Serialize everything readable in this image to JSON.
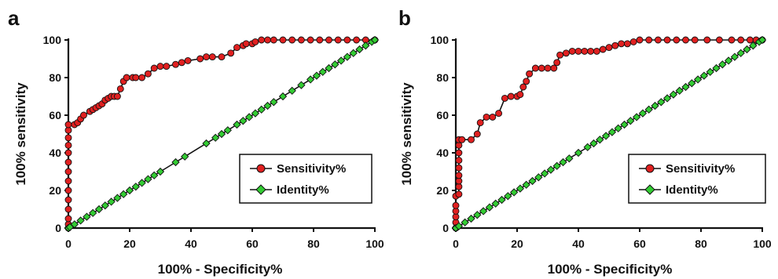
{
  "colors": {
    "sensitivity": "#e02020",
    "identity": "#33cc33",
    "axis": "#111111"
  },
  "chart_data": [
    {
      "panel_label": "a",
      "type": "line",
      "xlabel": "100% - Specificity%",
      "ylabel": "100% sensitivity",
      "xlim": [
        0,
        100
      ],
      "ylim": [
        0,
        100
      ],
      "x_ticks": [
        "0",
        "20",
        "40",
        "60",
        "80",
        "100"
      ],
      "y_ticks": [
        "0",
        "20",
        "40",
        "60",
        "80",
        "100"
      ],
      "legend": [
        "Sensitivity%",
        "Identity%"
      ],
      "legend_position": "bottom-right",
      "grid": false,
      "series": [
        {
          "name": "Sensitivity%",
          "marker": "circle",
          "points": [
            [
              0,
              0
            ],
            [
              0,
              2
            ],
            [
              0,
              5
            ],
            [
              0,
              10
            ],
            [
              0,
              15
            ],
            [
              0,
              20
            ],
            [
              0,
              25
            ],
            [
              0,
              30
            ],
            [
              0,
              35
            ],
            [
              0,
              40
            ],
            [
              0,
              44
            ],
            [
              0,
              48
            ],
            [
              0,
              52
            ],
            [
              0,
              55
            ],
            [
              2,
              55
            ],
            [
              3,
              56
            ],
            [
              4,
              58
            ],
            [
              5,
              60
            ],
            [
              7,
              62
            ],
            [
              8,
              63
            ],
            [
              9,
              64
            ],
            [
              10,
              65
            ],
            [
              11,
              66
            ],
            [
              12,
              68
            ],
            [
              13,
              69
            ],
            [
              14,
              70
            ],
            [
              15,
              70
            ],
            [
              16,
              70
            ],
            [
              17,
              74
            ],
            [
              18,
              78
            ],
            [
              19,
              80
            ],
            [
              21,
              80
            ],
            [
              22,
              80
            ],
            [
              24,
              80
            ],
            [
              26,
              82
            ],
            [
              28,
              85
            ],
            [
              30,
              86
            ],
            [
              32,
              86
            ],
            [
              35,
              87
            ],
            [
              37,
              88
            ],
            [
              39,
              89
            ],
            [
              43,
              90
            ],
            [
              45,
              91
            ],
            [
              47,
              91
            ],
            [
              50,
              91
            ],
            [
              53,
              93
            ],
            [
              55,
              96
            ],
            [
              57,
              97
            ],
            [
              58,
              98
            ],
            [
              60,
              98
            ],
            [
              61,
              99
            ],
            [
              63,
              100
            ],
            [
              65,
              100
            ],
            [
              67,
              100
            ],
            [
              70,
              100
            ],
            [
              73,
              100
            ],
            [
              76,
              100
            ],
            [
              79,
              100
            ],
            [
              82,
              100
            ],
            [
              85,
              100
            ],
            [
              88,
              100
            ],
            [
              91,
              100
            ],
            [
              94,
              100
            ],
            [
              97,
              100
            ],
            [
              100,
              100
            ]
          ]
        },
        {
          "name": "Identity%",
          "marker": "diamond",
          "points": [
            [
              0,
              0
            ],
            [
              0.5,
              0.5
            ],
            [
              2,
              2
            ],
            [
              4,
              4
            ],
            [
              6,
              6
            ],
            [
              8,
              8
            ],
            [
              10,
              10
            ],
            [
              12,
              12
            ],
            [
              14,
              14
            ],
            [
              16,
              16
            ],
            [
              18,
              18
            ],
            [
              20,
              20
            ],
            [
              22,
              22
            ],
            [
              24,
              24
            ],
            [
              26,
              26
            ],
            [
              28,
              28
            ],
            [
              30,
              30
            ],
            [
              35,
              35
            ],
            [
              38,
              38
            ],
            [
              45,
              45
            ],
            [
              48,
              48
            ],
            [
              50,
              50
            ],
            [
              52,
              52
            ],
            [
              55,
              55
            ],
            [
              57,
              57
            ],
            [
              59,
              59
            ],
            [
              61,
              61
            ],
            [
              63,
              63
            ],
            [
              65,
              65
            ],
            [
              67,
              67
            ],
            [
              70,
              70
            ],
            [
              73,
              73
            ],
            [
              76,
              76
            ],
            [
              79,
              79
            ],
            [
              81,
              81
            ],
            [
              83,
              83
            ],
            [
              85,
              85
            ],
            [
              87,
              87
            ],
            [
              89,
              89
            ],
            [
              91,
              91
            ],
            [
              93,
              93
            ],
            [
              95,
              95
            ],
            [
              97,
              97
            ],
            [
              99,
              99
            ],
            [
              100,
              100
            ]
          ]
        }
      ]
    },
    {
      "panel_label": "b",
      "type": "line",
      "xlabel": "100% - Specificity%",
      "ylabel": "100% sensitivity",
      "xlim": [
        0,
        100
      ],
      "ylim": [
        0,
        100
      ],
      "x_ticks": [
        "0",
        "20",
        "40",
        "60",
        "80",
        "100"
      ],
      "y_ticks": [
        "0",
        "20",
        "40",
        "60",
        "80",
        "100"
      ],
      "legend": [
        "Sensitivity%",
        "Identity%"
      ],
      "legend_position": "bottom-right",
      "grid": false,
      "series": [
        {
          "name": "Sensitivity%",
          "marker": "circle",
          "points": [
            [
              0,
              0
            ],
            [
              0,
              3
            ],
            [
              0,
              6
            ],
            [
              0,
              9
            ],
            [
              0,
              12
            ],
            [
              0,
              17
            ],
            [
              1,
              18
            ],
            [
              1,
              22
            ],
            [
              1,
              25
            ],
            [
              1,
              28
            ],
            [
              1,
              32
            ],
            [
              1,
              36
            ],
            [
              1,
              40
            ],
            [
              1,
              44
            ],
            [
              1,
              47
            ],
            [
              2,
              47
            ],
            [
              5,
              47
            ],
            [
              7,
              50
            ],
            [
              8,
              56
            ],
            [
              10,
              59
            ],
            [
              12,
              59
            ],
            [
              14,
              61
            ],
            [
              16,
              69
            ],
            [
              18,
              70
            ],
            [
              20,
              70
            ],
            [
              21,
              71
            ],
            [
              22,
              75
            ],
            [
              23,
              78
            ],
            [
              24,
              82
            ],
            [
              26,
              85
            ],
            [
              28,
              85
            ],
            [
              30,
              85
            ],
            [
              32,
              85
            ],
            [
              33,
              88
            ],
            [
              34,
              92
            ],
            [
              36,
              93
            ],
            [
              38,
              94
            ],
            [
              40,
              94
            ],
            [
              42,
              94
            ],
            [
              44,
              94
            ],
            [
              46,
              94
            ],
            [
              48,
              95
            ],
            [
              50,
              96
            ],
            [
              52,
              97
            ],
            [
              54,
              98
            ],
            [
              56,
              98
            ],
            [
              58,
              99
            ],
            [
              60,
              100
            ],
            [
              63,
              100
            ],
            [
              66,
              100
            ],
            [
              69,
              100
            ],
            [
              72,
              100
            ],
            [
              75,
              100
            ],
            [
              78,
              100
            ],
            [
              82,
              100
            ],
            [
              86,
              100
            ],
            [
              90,
              100
            ],
            [
              93,
              100
            ],
            [
              96,
              100
            ],
            [
              98,
              100
            ],
            [
              100,
              100
            ]
          ]
        },
        {
          "name": "Identity%",
          "marker": "diamond",
          "points": [
            [
              0,
              0
            ],
            [
              1,
              1
            ],
            [
              3,
              3
            ],
            [
              5,
              5
            ],
            [
              7,
              7
            ],
            [
              9,
              9
            ],
            [
              11,
              11
            ],
            [
              13,
              13
            ],
            [
              15,
              15
            ],
            [
              17,
              17
            ],
            [
              19,
              19
            ],
            [
              21,
              21
            ],
            [
              23,
              23
            ],
            [
              25,
              25
            ],
            [
              27,
              27
            ],
            [
              29,
              29
            ],
            [
              31,
              31
            ],
            [
              33,
              33
            ],
            [
              35,
              35
            ],
            [
              37,
              37
            ],
            [
              40,
              40
            ],
            [
              43,
              43
            ],
            [
              45,
              45
            ],
            [
              47,
              47
            ],
            [
              49,
              49
            ],
            [
              51,
              51
            ],
            [
              53,
              53
            ],
            [
              55,
              55
            ],
            [
              57,
              57
            ],
            [
              59,
              59
            ],
            [
              61,
              61
            ],
            [
              63,
              63
            ],
            [
              65,
              65
            ],
            [
              67,
              67
            ],
            [
              69,
              69
            ],
            [
              71,
              71
            ],
            [
              73,
              73
            ],
            [
              75,
              75
            ],
            [
              77,
              77
            ],
            [
              79,
              79
            ],
            [
              81,
              81
            ],
            [
              83,
              83
            ],
            [
              85,
              85
            ],
            [
              87,
              87
            ],
            [
              89,
              89
            ],
            [
              91,
              91
            ],
            [
              93,
              93
            ],
            [
              95,
              95
            ],
            [
              97,
              97
            ],
            [
              99,
              99
            ],
            [
              100,
              100
            ]
          ]
        }
      ]
    }
  ]
}
